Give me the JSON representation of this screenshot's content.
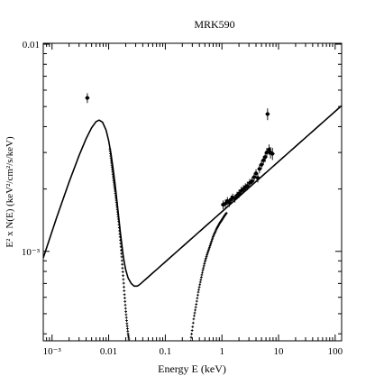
{
  "chart_data": {
    "type": "scatter",
    "title": "MRK590",
    "xlabel": "Energy E (keV)",
    "ylabel": "E² x N(E) (keV²/cm²/s/keV)",
    "xscale": "log",
    "yscale": "log",
    "xlim": [
      0.0007,
      130
    ],
    "ylim": [
      0.00037,
      0.0101
    ],
    "grid": false,
    "x_ticks": [
      {
        "value": 0.001,
        "label": "10⁻³"
      },
      {
        "value": 0.01,
        "label": "0.01"
      },
      {
        "value": 0.1,
        "label": "0.1"
      },
      {
        "value": 1,
        "label": "1"
      },
      {
        "value": 10,
        "label": "10"
      },
      {
        "value": 100,
        "label": "100"
      }
    ],
    "y_ticks": [
      {
        "value": 0.001,
        "label": "10⁻³"
      },
      {
        "value": 0.01,
        "label": "0.01"
      }
    ],
    "series": [
      {
        "role": "model-soft-component",
        "style": "line",
        "x": [
          0.0007,
          0.0012,
          0.002,
          0.003,
          0.004,
          0.005,
          0.006,
          0.0068,
          0.0078,
          0.009,
          0.01,
          0.011,
          0.012,
          0.013,
          0.014,
          0.015,
          0.016,
          0.017,
          0.018,
          0.019,
          0.02,
          0.022,
          0.025,
          0.028,
          0.032,
          0.035
        ],
        "y": [
          0.00093,
          0.00145,
          0.00216,
          0.0029,
          0.0035,
          0.00395,
          0.00423,
          0.0043,
          0.0042,
          0.00385,
          0.00342,
          0.00295,
          0.0025,
          0.0021,
          0.00175,
          0.00147,
          0.00125,
          0.00109,
          0.00096,
          0.000875,
          0.000815,
          0.000745,
          0.0007,
          0.00068,
          0.00068,
          0.00069
        ]
      },
      {
        "role": "model-powerlaw",
        "style": "line",
        "x": [
          0.035,
          130
        ],
        "y": [
          0.00069,
          0.00505
        ]
      },
      {
        "role": "absorbed-model-soft",
        "style": "dots",
        "x": [
          0.0105,
          0.011,
          0.012,
          0.013,
          0.014,
          0.015,
          0.016,
          0.017,
          0.018,
          0.019,
          0.02,
          0.021,
          0.022,
          0.023
        ],
        "y": [
          0.00312,
          0.0028,
          0.0023,
          0.00195,
          0.00165,
          0.0014,
          0.00115,
          0.00094,
          0.00076,
          0.00062,
          0.00052,
          0.00045,
          0.0004,
          0.00037
        ]
      },
      {
        "role": "absorbed-model-hard",
        "style": "dots",
        "x": [
          0.28,
          0.3,
          0.32,
          0.35,
          0.38,
          0.42,
          0.46,
          0.5,
          0.55,
          0.6,
          0.7,
          0.8,
          0.9,
          1.0,
          1.1,
          1.2
        ],
        "y": [
          0.00037,
          0.00042,
          0.00048,
          0.00055,
          0.00063,
          0.00072,
          0.00081,
          0.00089,
          0.00097,
          0.00104,
          0.00118,
          0.00128,
          0.00136,
          0.00142,
          0.00148,
          0.00153
        ]
      },
      {
        "role": "data-points",
        "style": "points",
        "x": [
          0.0042,
          1.05,
          1.15,
          1.25,
          1.35,
          1.45,
          1.55,
          1.7,
          1.85,
          2.0,
          2.2,
          2.4,
          2.6,
          2.8,
          3.1,
          3.4,
          3.7,
          4.0,
          4.3,
          4.6,
          5.0,
          5.4,
          5.8,
          6.2,
          6.4,
          6.8,
          7.2,
          7.8
        ],
        "y": [
          0.0055,
          0.00168,
          0.0017,
          0.00175,
          0.00172,
          0.00178,
          0.00182,
          0.0018,
          0.00186,
          0.0019,
          0.00196,
          0.002,
          0.00204,
          0.00207,
          0.00214,
          0.00218,
          0.00228,
          0.00238,
          0.00226,
          0.0025,
          0.00262,
          0.00275,
          0.00285,
          0.003,
          0.0046,
          0.0031,
          0.003,
          0.00296
        ],
        "yerr": [
          0.0003,
          8e-05,
          8e-05,
          8e-05,
          8e-05,
          8e-05,
          8e-05,
          8e-05,
          8e-05,
          9e-05,
          9e-05,
          9e-05,
          9e-05,
          0.0001,
          0.0001,
          0.0001,
          0.0001,
          0.00011,
          0.00011,
          0.00012,
          0.00013,
          0.00014,
          0.00015,
          0.00016,
          0.0003,
          0.00018,
          0.00019,
          0.0002
        ]
      }
    ]
  }
}
